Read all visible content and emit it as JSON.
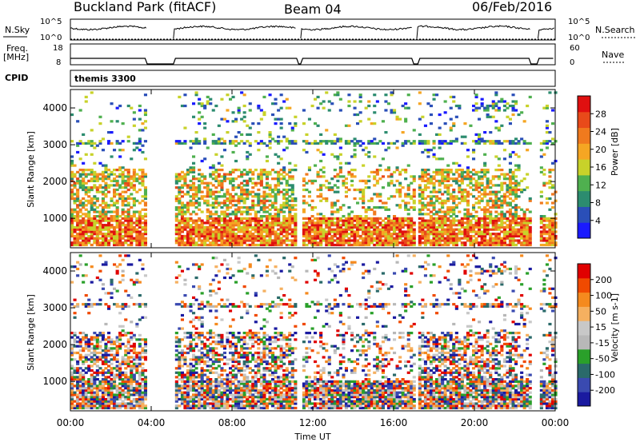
{
  "header": {
    "title": "Buckland Park (fitACF)",
    "beam": "Beam 04",
    "date": "06/Feb/2016"
  },
  "summary": {
    "nsky_label": "N.Sky",
    "nsky_ticks": [
      "10^5",
      "10^0"
    ],
    "nsearch_label": "N.Search",
    "nsearch_ticks": [
      "10^5",
      "10^0"
    ],
    "freq_label_1": "Freq.",
    "freq_label_2": "[MHz]",
    "freq_ticks": [
      "18",
      "8"
    ],
    "nave_label": "Nave",
    "nave_ticks": [
      "60",
      "0"
    ],
    "cpid_label": "CPID",
    "cpid_value": "themis 3300"
  },
  "colors": {
    "power": [
      "#1a1aff",
      "#2a4fb8",
      "#2c8c6f",
      "#4fb04f",
      "#c8d22a",
      "#f5a623",
      "#f07a1e",
      "#e84a1a",
      "#e01010"
    ],
    "velocity": [
      "#e00000",
      "#f04a00",
      "#f58a1e",
      "#f5b060",
      "#c8c8c8",
      "#b8b8b8",
      "#2aa02a",
      "#2a6a6a",
      "#3a4ab0",
      "#1a1aa0"
    ]
  },
  "chart_data": [
    {
      "type": "heatmap",
      "name": "power",
      "ylabel": "Slant Range [km]",
      "yticks": [
        "1000",
        "2000",
        "3000",
        "4000"
      ],
      "ylim": [
        200,
        4500
      ],
      "colorbar_label": "Power [dB]",
      "colorbar_ticks": [
        "4",
        "8",
        "12",
        "16",
        "20",
        "24",
        "28"
      ],
      "colorbar_range": [
        0,
        32
      ]
    },
    {
      "type": "heatmap",
      "name": "velocity",
      "ylabel": "Slant Range [km]",
      "yticks": [
        "1000",
        "2000",
        "3000",
        "4000"
      ],
      "ylim": [
        200,
        4500
      ],
      "colorbar_label": "Velocity [m s-1]",
      "colorbar_ticks": [
        "200",
        "100",
        "50",
        "15",
        "-15",
        "-50",
        "-100",
        "-200"
      ]
    }
  ],
  "xaxis": {
    "label": "Time UT",
    "ticks": [
      "00:00",
      "04:00",
      "08:00",
      "12:00",
      "16:00",
      "20:00",
      "00:00"
    ],
    "range_hours": [
      0,
      24
    ],
    "data_gaps_hours": [
      [
        3.75,
        5.1
      ],
      [
        11.2,
        11.45
      ],
      [
        16.95,
        17.2
      ],
      [
        22.8,
        23.2
      ]
    ]
  }
}
